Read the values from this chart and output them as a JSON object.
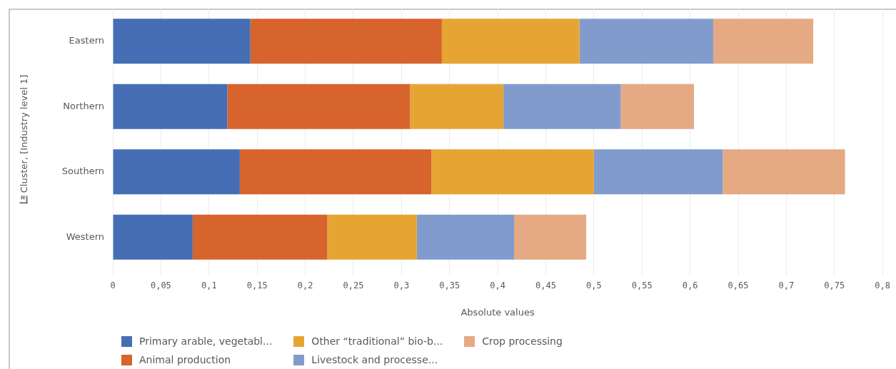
{
  "chart_data": {
    "type": "bar",
    "orientation": "horizontal",
    "stacked": true,
    "xlabel": "Absolute values",
    "ylabel": "Cluster, [Industry level 1]",
    "categories": [
      "Eastern",
      "Northern",
      "Southern",
      "Western"
    ],
    "series": [
      {
        "name": "Primary arable, vegetabl...",
        "color": "#466eb4",
        "values": [
          0.143,
          0.119,
          0.132,
          0.083
        ]
      },
      {
        "name": "Animal production",
        "color": "#d7642c",
        "values": [
          0.199,
          0.19,
          0.199,
          0.14
        ]
      },
      {
        "name": "Other “traditional” bio-b...",
        "color": "#e6a532",
        "values": [
          0.143,
          0.097,
          0.169,
          0.093
        ]
      },
      {
        "name": "Livestock and processe...",
        "color": "#819ccc",
        "values": [
          0.139,
          0.122,
          0.134,
          0.101
        ]
      },
      {
        "name": "Crop processing",
        "color": "#e5a984",
        "values": [
          0.104,
          0.076,
          0.127,
          0.075
        ]
      }
    ],
    "xlim": [
      0,
      0.8
    ],
    "xticks": [
      0,
      {
        "value": 0.05,
        "label": "0,05"
      },
      {
        "value": 0.1,
        "label": "0,1"
      },
      {
        "value": 0.15,
        "label": "0,15"
      },
      {
        "value": 0.2,
        "label": "0,2"
      },
      {
        "value": 0.25,
        "label": "0,25"
      },
      {
        "value": 0.3,
        "label": "0,3"
      },
      {
        "value": 0.35,
        "label": "0,35"
      },
      {
        "value": 0.4,
        "label": "0,4"
      },
      {
        "value": 0.45,
        "label": "0,45"
      },
      {
        "value": 0.5,
        "label": "0,5"
      },
      {
        "value": 0.55,
        "label": "0,55"
      },
      {
        "value": 0.6,
        "label": "0,6"
      },
      {
        "value": 0.65,
        "label": "0,65"
      },
      {
        "value": 0.7,
        "label": "0,7"
      },
      {
        "value": 0.75,
        "label": "0,75"
      },
      {
        "value": 0.8,
        "label": "0,8"
      }
    ],
    "grid": "x",
    "legend": "bottom left"
  }
}
